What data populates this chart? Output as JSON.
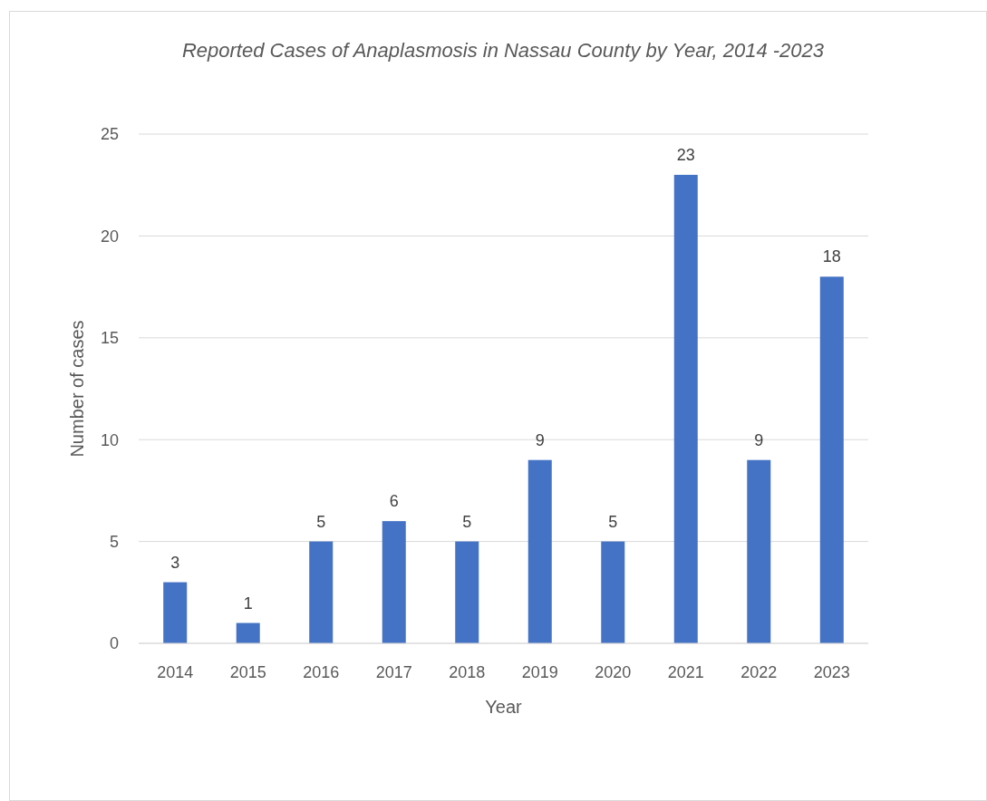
{
  "chart_data": {
    "type": "bar",
    "title": "Reported Cases of Anaplasmosis in Nassau County by Year, 2014 -2023",
    "xlabel": "Year",
    "ylabel": "Number of cases",
    "categories": [
      "2014",
      "2015",
      "2016",
      "2017",
      "2018",
      "2019",
      "2020",
      "2021",
      "2022",
      "2023"
    ],
    "values": [
      3,
      1,
      5,
      6,
      5,
      9,
      5,
      23,
      9,
      18
    ],
    "color": "#4472c4",
    "ylim": [
      0,
      25
    ],
    "yticks": [
      0,
      5,
      10,
      15,
      20,
      25
    ],
    "grid": "y",
    "data_labels": true
  }
}
